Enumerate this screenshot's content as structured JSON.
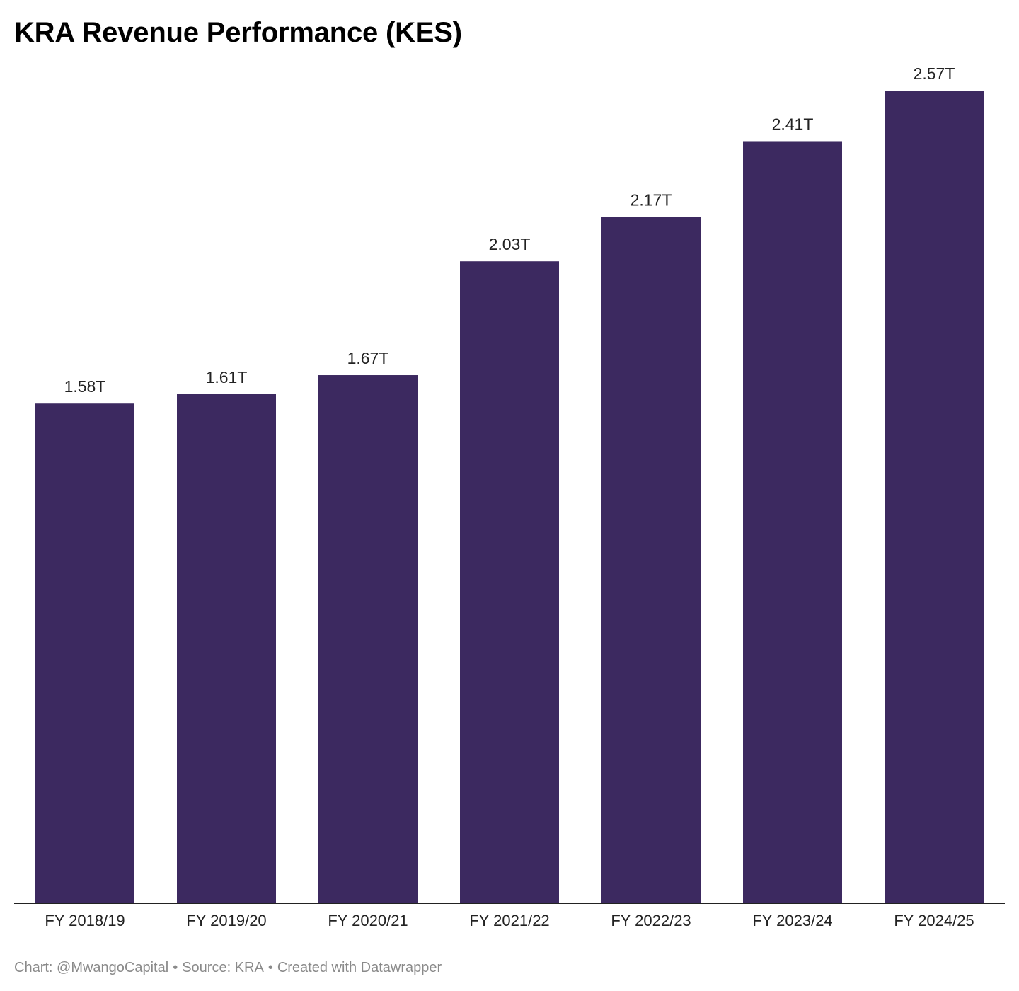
{
  "chart_data": {
    "type": "bar",
    "title": "KRA Revenue Performance (KES)",
    "categories": [
      "FY 2018/19",
      "FY 2019/20",
      "FY 2020/21",
      "FY 2021/22",
      "FY 2022/23",
      "FY 2023/24",
      "FY 2024/25"
    ],
    "values": [
      1.58,
      1.61,
      1.67,
      2.03,
      2.17,
      2.41,
      2.57
    ],
    "value_labels": [
      "1.58T",
      "1.61T",
      "1.67T",
      "2.03T",
      "2.17T",
      "2.41T",
      "2.57T"
    ],
    "xlabel": "",
    "ylabel": "",
    "ylim": [
      0,
      2.57
    ],
    "grid": false,
    "bar_color": "#3c2960"
  },
  "footer": {
    "chart_credit": "Chart: @MwangoCapital",
    "separator": "•",
    "source": "Source: KRA",
    "created_with": "Created with Datawrapper"
  }
}
